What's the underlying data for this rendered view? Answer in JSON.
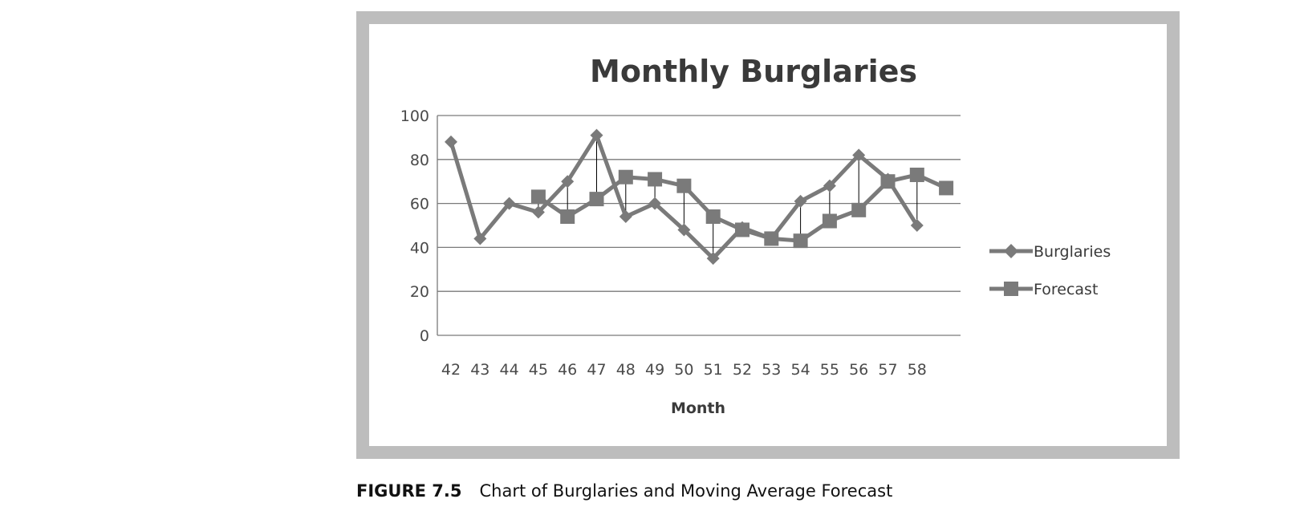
{
  "caption": {
    "label": "FIGURE 7.5",
    "text": "Chart of Burglaries and Moving Average Forecast"
  },
  "colors": {
    "frame": "#bdbdbd",
    "series": "#7a7a7a",
    "gridline": "#7a7a7a",
    "dropline": "#000000",
    "text": "#3a3a3a"
  },
  "chart_data": {
    "type": "line",
    "title": "Monthly Burglaries",
    "xlabel": "Month",
    "ylabel": "",
    "ylim": [
      0,
      100
    ],
    "yticks": [
      0,
      20,
      40,
      60,
      80,
      100
    ],
    "grid": true,
    "legend_position": "right",
    "categories": [
      "42",
      "43",
      "44",
      "45",
      "46",
      "47",
      "48",
      "49",
      "50",
      "51",
      "52",
      "53",
      "54",
      "55",
      "56",
      "57",
      "58",
      ""
    ],
    "series": [
      {
        "name": "Burglaries",
        "marker": "diamond",
        "values": [
          88,
          44,
          60,
          56,
          70,
          91,
          54,
          60,
          48,
          35,
          49,
          44,
          61,
          68,
          82,
          71,
          50,
          null
        ]
      },
      {
        "name": "Forecast",
        "marker": "square",
        "values": [
          null,
          null,
          null,
          63,
          54,
          62,
          72,
          71,
          68,
          54,
          48,
          44,
          43,
          52,
          57,
          70,
          73,
          67
        ]
      }
    ],
    "drop_lines": true
  }
}
